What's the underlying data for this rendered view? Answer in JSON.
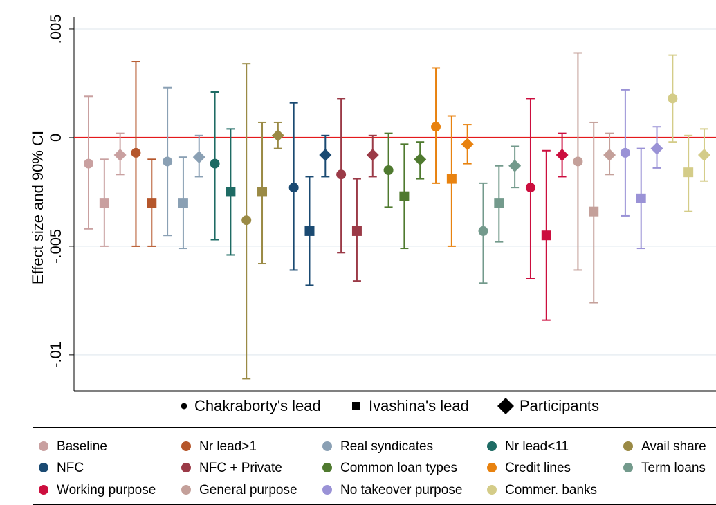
{
  "chart_data": {
    "type": "errorbar",
    "y_label": "Effect size and 90% CI",
    "ylim": [
      -0.01166,
      0.00554
    ],
    "yticks": [
      {
        "value": -0.01,
        "label": "-.01"
      },
      {
        "value": -0.005,
        "label": "-.005"
      },
      0,
      {
        "value": 0.005,
        "label": ".005"
      }
    ],
    "grid": true,
    "reference_line": {
      "value": 0,
      "color": "#e41a1c"
    },
    "marker_legend": [
      "Chakraborty's lead",
      "Ivashina's lead",
      "Participants"
    ],
    "series": [
      {
        "name": "Baseline",
        "color": "#c9a0a0",
        "values": [
          -0.0012,
          -0.003,
          -0.0008
        ],
        "lower": [
          -0.0042,
          -0.005,
          -0.0017
        ],
        "upper": [
          0.0019,
          -0.001,
          0.0002
        ]
      },
      {
        "name": "Nr lead>1",
        "color": "#b5562b",
        "values": [
          -0.0007,
          -0.003,
          null
        ],
        "lower": [
          -0.005,
          -0.005,
          null
        ],
        "upper": [
          0.0035,
          -0.001,
          null
        ]
      },
      {
        "name": "Real syndicates",
        "color": "#8aa0b4",
        "values": [
          -0.0011,
          -0.003,
          -0.0009
        ],
        "lower": [
          -0.0045,
          -0.0051,
          -0.0018
        ],
        "upper": [
          0.0023,
          -0.0009,
          0.0001
        ]
      },
      {
        "name": "Nr lead<11",
        "color": "#1e6b64",
        "values": [
          -0.0012,
          -0.0025,
          null
        ],
        "lower": [
          -0.0047,
          -0.0054,
          null
        ],
        "upper": [
          0.0021,
          0.0004,
          null
        ]
      },
      {
        "name": "Avail share",
        "color": "#9a8a45",
        "values": [
          -0.0038,
          -0.0025,
          0.0001
        ],
        "lower": [
          -0.0111,
          -0.0058,
          -0.0005
        ],
        "upper": [
          0.0034,
          0.0007,
          0.0007
        ]
      },
      {
        "name": "NFC",
        "color": "#1a4a72",
        "values": [
          -0.0023,
          -0.0043,
          -0.0008
        ],
        "lower": [
          -0.0061,
          -0.0068,
          -0.0018
        ],
        "upper": [
          0.0016,
          -0.0018,
          0.0001
        ]
      },
      {
        "name": "NFC + Private",
        "color": "#9b3a47",
        "values": [
          -0.0017,
          -0.0043,
          -0.0008
        ],
        "lower": [
          -0.0053,
          -0.0066,
          -0.0018
        ],
        "upper": [
          0.0018,
          -0.0019,
          0.0001
        ]
      },
      {
        "name": "Common loan types",
        "color": "#4f7a2f",
        "values": [
          -0.0015,
          -0.0027,
          -0.001
        ],
        "lower": [
          -0.0032,
          -0.0051,
          -0.0019
        ],
        "upper": [
          0.0002,
          -0.0003,
          -0.0002
        ]
      },
      {
        "name": "Credit lines",
        "color": "#e8820f",
        "values": [
          0.0005,
          -0.0019,
          -0.0003
        ],
        "lower": [
          -0.0021,
          -0.005,
          -0.0012
        ],
        "upper": [
          0.0032,
          0.001,
          0.0006
        ]
      },
      {
        "name": "Term loans",
        "color": "#739a8c",
        "values": [
          -0.0043,
          -0.003,
          -0.0013
        ],
        "lower": [
          -0.0067,
          -0.0048,
          -0.0023
        ],
        "upper": [
          -0.0021,
          -0.0013,
          -0.0004
        ]
      },
      {
        "name": "Working purpose",
        "color": "#cc0e3e",
        "values": [
          -0.0023,
          -0.0045,
          -0.0008
        ],
        "lower": [
          -0.0065,
          -0.0084,
          -0.0018
        ],
        "upper": [
          0.0018,
          -0.0006,
          0.0002
        ]
      },
      {
        "name": "General purpose",
        "color": "#c4a09a",
        "values": [
          -0.0011,
          -0.0034,
          -0.0008
        ],
        "lower": [
          -0.0061,
          -0.0076,
          -0.0017
        ],
        "upper": [
          0.0039,
          0.0007,
          0.0002
        ]
      },
      {
        "name": "No takeover purpose",
        "color": "#9a92d6",
        "values": [
          -0.0007,
          -0.0028,
          -0.0005
        ],
        "lower": [
          -0.0036,
          -0.0051,
          -0.0014
        ],
        "upper": [
          0.0022,
          -0.0005,
          0.0005
        ]
      },
      {
        "name": "Commer. banks",
        "color": "#d4cc88",
        "values": [
          0.0018,
          -0.0016,
          -0.0008
        ],
        "lower": [
          -0.0002,
          -0.0034,
          -0.002
        ],
        "upper": [
          0.0038,
          0.0001,
          0.0004
        ]
      }
    ]
  }
}
